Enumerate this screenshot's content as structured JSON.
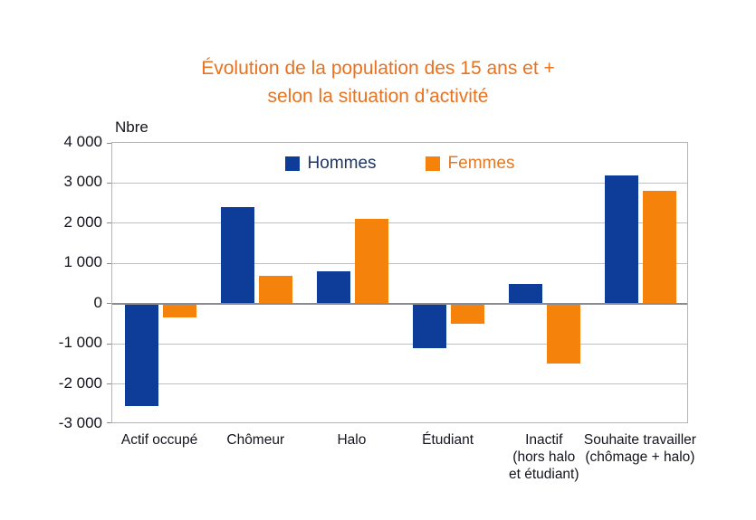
{
  "title": {
    "line1": "Évolution de la population des 15 ans et +",
    "line2": "selon la situation d’activité"
  },
  "colors": {
    "title_text": "#e8721f",
    "hommes_bar": "#0e3c99",
    "femmes_bar": "#f5820a",
    "hommes_legend_text": "#1e3563",
    "femmes_legend_text": "#e07a28",
    "axis_text": "#14141e",
    "gridline": "#c0c0c4",
    "zero_line": "#8a8a92",
    "plot_border": "#b4b4b8"
  },
  "chart_data": {
    "type": "bar",
    "title": "Évolution de la population des 15 ans et + selon la situation d’activité",
    "ylabel": "Nbre",
    "xlabel": "",
    "grid": true,
    "legend_position": "top-center-inside",
    "ylim": [
      -3000,
      4000
    ],
    "ytick_step": 1000,
    "ytick_labels": [
      "4 000",
      "3 000",
      "2 000",
      "1 000",
      "0",
      "-1 000",
      "-2 000",
      "-3 000"
    ],
    "categories": [
      "Actif occupé",
      "Chômeur",
      "Halo",
      "Étudiant",
      "Inactif (hors halo et étudiant)",
      "Souhaite travailler (chômage + halo)"
    ],
    "category_label_lines": [
      [
        "Actif occupé"
      ],
      [
        "Chômeur"
      ],
      [
        "Halo"
      ],
      [
        "Étudiant"
      ],
      [
        "Inactif",
        "(hors halo",
        "et étudiant)"
      ],
      [
        "Souhaite travailler",
        "(chômage + halo)"
      ]
    ],
    "series": [
      {
        "name": "Hommes",
        "color": "#0e3c99",
        "values": [
          -2550,
          2400,
          800,
          -1100,
          500,
          3200
        ]
      },
      {
        "name": "Femmes",
        "color": "#f5820a",
        "values": [
          -350,
          700,
          2100,
          -500,
          -1500,
          2800
        ]
      }
    ]
  }
}
